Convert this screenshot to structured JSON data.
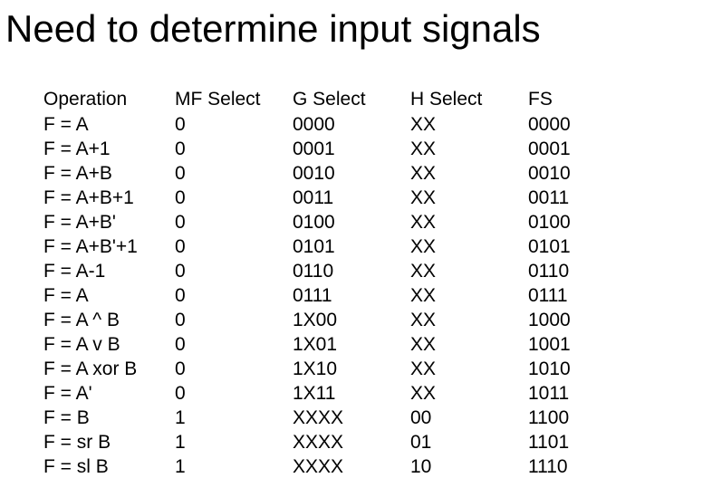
{
  "title": "Need to determine input signals",
  "table": {
    "headers": {
      "operation": "Operation",
      "mf_select": "MF Select",
      "g_select": "G Select",
      "h_select": "H Select",
      "fs": "FS"
    },
    "rows": [
      {
        "op": "F = A",
        "mf": "0",
        "g": "0000",
        "h": "XX",
        "fs": "0000"
      },
      {
        "op": "F = A+1",
        "mf": "0",
        "g": "0001",
        "h": "XX",
        "fs": "0001"
      },
      {
        "op": "F = A+B",
        "mf": "0",
        "g": "0010",
        "h": "XX",
        "fs": "0010"
      },
      {
        "op": "F = A+B+1",
        "mf": "0",
        "g": "0011",
        "h": "XX",
        "fs": "0011"
      },
      {
        "op": "F = A+B'",
        "mf": "0",
        "g": "0100",
        "h": "XX",
        "fs": "0100"
      },
      {
        "op": "F = A+B'+1",
        "mf": "0",
        "g": "0101",
        "h": "XX",
        "fs": "0101"
      },
      {
        "op": "F = A-1",
        "mf": "0",
        "g": "0110",
        "h": "XX",
        "fs": "0110"
      },
      {
        "op": "F = A",
        "mf": "0",
        "g": "0111",
        "h": "XX",
        "fs": "0111"
      },
      {
        "op": "F = A ^ B",
        "mf": "0",
        "g": "1X00",
        "h": "XX",
        "fs": "1000"
      },
      {
        "op": "F = A v B",
        "mf": "0",
        "g": "1X01",
        "h": "XX",
        "fs": "1001"
      },
      {
        "op": "F = A xor B",
        "mf": "0",
        "g": "1X10",
        "h": "XX",
        "fs": "1010"
      },
      {
        "op": "F = A'",
        "mf": "0",
        "g": "1X11",
        "h": "XX",
        "fs": "1011"
      },
      {
        "op": "F = B",
        "mf": "1",
        "g": "XXXX",
        "h": "00",
        "fs": "1100"
      },
      {
        "op": "F = sr B",
        "mf": "1",
        "g": "XXXX",
        "h": "01",
        "fs": "1101"
      },
      {
        "op": "F = sl B",
        "mf": "1",
        "g": "XXXX",
        "h": "10",
        "fs": "1110"
      }
    ]
  }
}
